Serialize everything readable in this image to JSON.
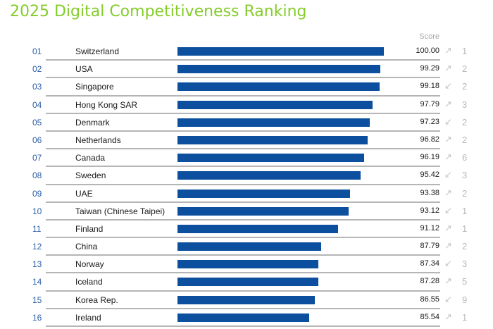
{
  "title": "2025 Digital Competitiveness Ranking",
  "score_header": "Score",
  "colors": {
    "title": "#84cc2a",
    "bar": "#0b4f9e",
    "rank": "#2c5fa8",
    "arrow": "#c4c4c4"
  },
  "chart_data": {
    "type": "bar",
    "orientation": "horizontal",
    "title": "2025 Digital Competitiveness Ranking",
    "value_label": "Score",
    "xlim": [
      60,
      100
    ],
    "categories": [
      "Switzerland",
      "USA",
      "Singapore",
      "Hong Kong SAR",
      "Denmark",
      "Netherlands",
      "Canada",
      "Sweden",
      "UAE",
      "Taiwan (Chinese Taipei)",
      "Finland",
      "China",
      "Norway",
      "Iceland",
      "Korea Rep.",
      "Ireland"
    ],
    "rows": [
      {
        "rank": "01",
        "country": "Switzerland",
        "score": "100.00",
        "value": 100.0,
        "direction": "up",
        "arrow": "↗",
        "change": "1"
      },
      {
        "rank": "02",
        "country": "USA",
        "score": "99.29",
        "value": 99.29,
        "direction": "up",
        "arrow": "↗",
        "change": "2"
      },
      {
        "rank": "03",
        "country": "Singapore",
        "score": "99.18",
        "value": 99.18,
        "direction": "down",
        "arrow": "↙",
        "change": "2"
      },
      {
        "rank": "04",
        "country": "Hong Kong SAR",
        "score": "97.79",
        "value": 97.79,
        "direction": "up",
        "arrow": "↗",
        "change": "3"
      },
      {
        "rank": "05",
        "country": "Denmark",
        "score": "97.23",
        "value": 97.23,
        "direction": "down",
        "arrow": "↙",
        "change": "2"
      },
      {
        "rank": "06",
        "country": "Netherlands",
        "score": "96.82",
        "value": 96.82,
        "direction": "up",
        "arrow": "↗",
        "change": "2"
      },
      {
        "rank": "07",
        "country": "Canada",
        "score": "96.19",
        "value": 96.19,
        "direction": "up",
        "arrow": "↗",
        "change": "6"
      },
      {
        "rank": "08",
        "country": "Sweden",
        "score": "95.42",
        "value": 95.42,
        "direction": "down",
        "arrow": "↙",
        "change": "3"
      },
      {
        "rank": "09",
        "country": "UAE",
        "score": "93.38",
        "value": 93.38,
        "direction": "up",
        "arrow": "↗",
        "change": "2"
      },
      {
        "rank": "10",
        "country": "Taiwan (Chinese Taipei)",
        "score": "93.12",
        "value": 93.12,
        "direction": "down",
        "arrow": "↙",
        "change": "1"
      },
      {
        "rank": "11",
        "country": "Finland",
        "score": "91.12",
        "value": 91.12,
        "direction": "up",
        "arrow": "↗",
        "change": "1"
      },
      {
        "rank": "12",
        "country": "China",
        "score": "87.79",
        "value": 87.79,
        "direction": "up",
        "arrow": "↗",
        "change": "2"
      },
      {
        "rank": "13",
        "country": "Norway",
        "score": "87.34",
        "value": 87.34,
        "direction": "down",
        "arrow": "↙",
        "change": "3"
      },
      {
        "rank": "14",
        "country": "Iceland",
        "score": "87.28",
        "value": 87.28,
        "direction": "up",
        "arrow": "↗",
        "change": "5"
      },
      {
        "rank": "15",
        "country": "Korea Rep.",
        "score": "86.55",
        "value": 86.55,
        "direction": "down",
        "arrow": "↙",
        "change": "9"
      },
      {
        "rank": "16",
        "country": "Ireland",
        "score": "85.54",
        "value": 85.54,
        "direction": "up",
        "arrow": "↗",
        "change": "1"
      }
    ]
  }
}
